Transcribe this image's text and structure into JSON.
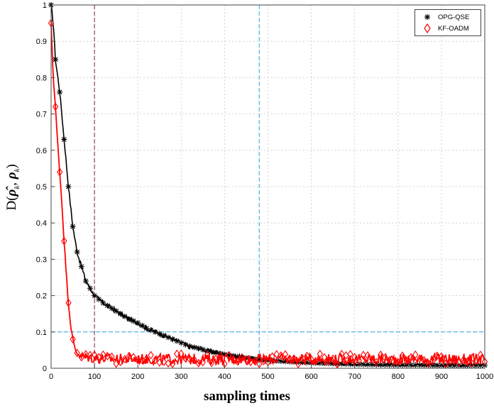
{
  "chart_data": {
    "type": "line",
    "title": "",
    "xlabel": "sampling times",
    "ylabel": "D(ρ̂k, ρk)",
    "xlim": [
      0,
      1000
    ],
    "ylim": [
      0,
      1
    ],
    "xticks": [
      "0",
      "100",
      "200",
      "300",
      "400",
      "500",
      "600",
      "700",
      "800",
      "900",
      "1000"
    ],
    "yticks": [
      "0",
      "0.1",
      "0.2",
      "0.3",
      "0.4",
      "0.5",
      "0.6",
      "0.7",
      "0.8",
      "0.9",
      "1"
    ],
    "grid": true,
    "legend": "top-right",
    "reference_lines": {
      "vertical": [
        {
          "x": 100,
          "color": "#7a1f3d"
        },
        {
          "x": 480,
          "color": "#2fa3e6"
        },
        {
          "x": 1000,
          "color": "#e0432a"
        }
      ],
      "horizontal": [
        {
          "y": 0.1,
          "color": "#2fa3e6"
        }
      ]
    },
    "series": [
      {
        "name": "OPG-QSE",
        "color": "#000000",
        "marker": "asterisk",
        "x": [
          0,
          5,
          10,
          20,
          30,
          40,
          50,
          60,
          70,
          80,
          90,
          100,
          120,
          140,
          160,
          180,
          200,
          220,
          240,
          260,
          280,
          300,
          320,
          340,
          360,
          380,
          400,
          420,
          440,
          460,
          480,
          500,
          550,
          600,
          650,
          700,
          750,
          800,
          850,
          900,
          950,
          1000
        ],
        "values": [
          1.0,
          0.95,
          0.85,
          0.76,
          0.63,
          0.5,
          0.39,
          0.32,
          0.28,
          0.24,
          0.22,
          0.2,
          0.18,
          0.165,
          0.15,
          0.135,
          0.125,
          0.11,
          0.1,
          0.09,
          0.08,
          0.07,
          0.06,
          0.055,
          0.048,
          0.043,
          0.038,
          0.034,
          0.03,
          0.027,
          0.024,
          0.022,
          0.018,
          0.015,
          0.013,
          0.011,
          0.01,
          0.009,
          0.009,
          0.008,
          0.008,
          0.008
        ]
      },
      {
        "name": "KF-OADM",
        "color": "#ff0000",
        "marker": "diamond",
        "x": [
          0,
          5,
          10,
          15,
          20,
          25,
          30,
          35,
          40,
          45,
          50,
          55,
          60,
          65,
          70,
          80,
          90,
          100,
          150,
          200,
          300,
          400,
          500,
          600,
          700,
          800,
          900,
          1000
        ],
        "values": [
          0.95,
          0.8,
          0.72,
          0.62,
          0.54,
          0.45,
          0.35,
          0.26,
          0.18,
          0.12,
          0.08,
          0.055,
          0.042,
          0.035,
          0.03,
          0.028,
          0.027,
          0.025,
          0.022,
          0.022,
          0.022,
          0.022,
          0.022,
          0.022,
          0.022,
          0.022,
          0.022,
          0.022
        ]
      }
    ]
  }
}
